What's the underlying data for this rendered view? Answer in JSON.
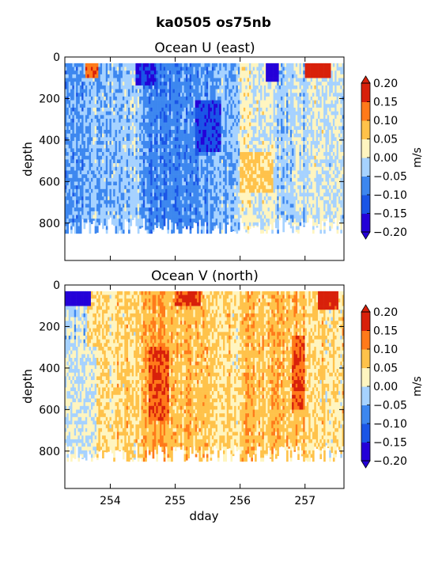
{
  "figure": {
    "suptitle": "ka0505 os75nb"
  },
  "colorbar": {
    "label": "m/s",
    "levels": [
      -0.2,
      -0.15,
      -0.1,
      -0.05,
      0.0,
      0.05,
      0.1,
      0.15,
      0.2
    ],
    "tick_labels": [
      "−0.20",
      "−0.15",
      "−0.10",
      "−0.05",
      "0.00",
      "0.05",
      "0.10",
      "0.15",
      "0.20"
    ],
    "colors": [
      "#2400d8",
      "#1a55e6",
      "#3d87ef",
      "#a6d2ff",
      "#fff5c0",
      "#ffc24a",
      "#ff7a1a",
      "#d8200a"
    ],
    "extend": "both"
  },
  "chart_data": [
    {
      "type": "heatmap",
      "title": "Ocean U (east)",
      "xlabel": "",
      "ylabel": "depth",
      "xlim": [
        253.3,
        257.6
      ],
      "ylim": [
        980,
        0
      ],
      "x_ticks": [
        254,
        255,
        256,
        257
      ],
      "x_tick_labels": [
        "",
        "",
        "",
        ""
      ],
      "y_ticks": [
        0,
        200,
        400,
        600,
        800
      ],
      "y_tick_labels": [
        "0",
        "200",
        "400",
        "600",
        "800"
      ],
      "data_depth_range": [
        30,
        850
      ],
      "segments": [
        {
          "x": [
            253.3,
            253.65
          ],
          "mean": -0.06
        },
        {
          "x": [
            253.65,
            254.1
          ],
          "mean": -0.04
        },
        {
          "x": [
            254.1,
            254.5
          ],
          "mean": -0.03
        },
        {
          "x": [
            254.5,
            255.0
          ],
          "mean": -0.08
        },
        {
          "x": [
            255.0,
            255.5
          ],
          "mean": -0.07
        },
        {
          "x": [
            255.5,
            256.0
          ],
          "mean": -0.05
        },
        {
          "x": [
            256.0,
            256.5
          ],
          "mean": 0.01
        },
        {
          "x": [
            256.5,
            257.0
          ],
          "mean": -0.02
        },
        {
          "x": [
            257.0,
            257.6
          ],
          "mean": 0.0
        }
      ],
      "features": [
        {
          "x": [
            253.62,
            253.82
          ],
          "depth": [
            30,
            100
          ],
          "value": 0.14
        },
        {
          "x": [
            256.4,
            256.6
          ],
          "depth": [
            30,
            120
          ],
          "value": -0.2
        },
        {
          "x": [
            257.0,
            257.4
          ],
          "depth": [
            30,
            110
          ],
          "value": 0.2
        },
        {
          "x": [
            254.4,
            254.7
          ],
          "depth": [
            30,
            130
          ],
          "value": -0.15
        },
        {
          "x": [
            255.3,
            255.7
          ],
          "depth": [
            200,
            450
          ],
          "value": -0.14
        },
        {
          "x": [
            256.0,
            256.5
          ],
          "depth": [
            450,
            650
          ],
          "value": 0.06
        }
      ],
      "colorbar_label": "m/s"
    },
    {
      "type": "heatmap",
      "title": "Ocean V (north)",
      "xlabel": "dday",
      "ylabel": "depth",
      "xlim": [
        253.3,
        257.6
      ],
      "ylim": [
        980,
        0
      ],
      "x_ticks": [
        254,
        255,
        256,
        257
      ],
      "x_tick_labels": [
        "254",
        "255",
        "256",
        "257"
      ],
      "y_ticks": [
        0,
        200,
        400,
        600,
        800
      ],
      "y_tick_labels": [
        "0",
        "200",
        "400",
        "600",
        "800"
      ],
      "data_depth_range": [
        30,
        850
      ],
      "segments": [
        {
          "x": [
            253.3,
            253.65
          ],
          "mean": -0.01
        },
        {
          "x": [
            253.65,
            254.1
          ],
          "mean": 0.04
        },
        {
          "x": [
            254.1,
            254.5
          ],
          "mean": 0.05
        },
        {
          "x": [
            254.5,
            255.0
          ],
          "mean": 0.09
        },
        {
          "x": [
            255.0,
            255.5
          ],
          "mean": 0.07
        },
        {
          "x": [
            255.5,
            256.0
          ],
          "mean": 0.05
        },
        {
          "x": [
            256.0,
            256.5
          ],
          "mean": 0.07
        },
        {
          "x": [
            256.5,
            257.0
          ],
          "mean": 0.08
        },
        {
          "x": [
            257.0,
            257.6
          ],
          "mean": 0.05
        }
      ],
      "features": [
        {
          "x": [
            253.3,
            253.7
          ],
          "depth": [
            30,
            110
          ],
          "value": -0.2
        },
        {
          "x": [
            254.6,
            254.9
          ],
          "depth": [
            300,
            650
          ],
          "value": 0.15
        },
        {
          "x": [
            256.8,
            257.0
          ],
          "depth": [
            250,
            600
          ],
          "value": 0.15
        },
        {
          "x": [
            255.0,
            255.4
          ],
          "depth": [
            30,
            110
          ],
          "value": 0.16
        },
        {
          "x": [
            257.2,
            257.5
          ],
          "depth": [
            30,
            120
          ],
          "value": 0.17
        },
        {
          "x": [
            253.3,
            253.8
          ],
          "depth": [
            300,
            850
          ],
          "value": 0.0
        }
      ],
      "colorbar_label": "m/s"
    }
  ]
}
